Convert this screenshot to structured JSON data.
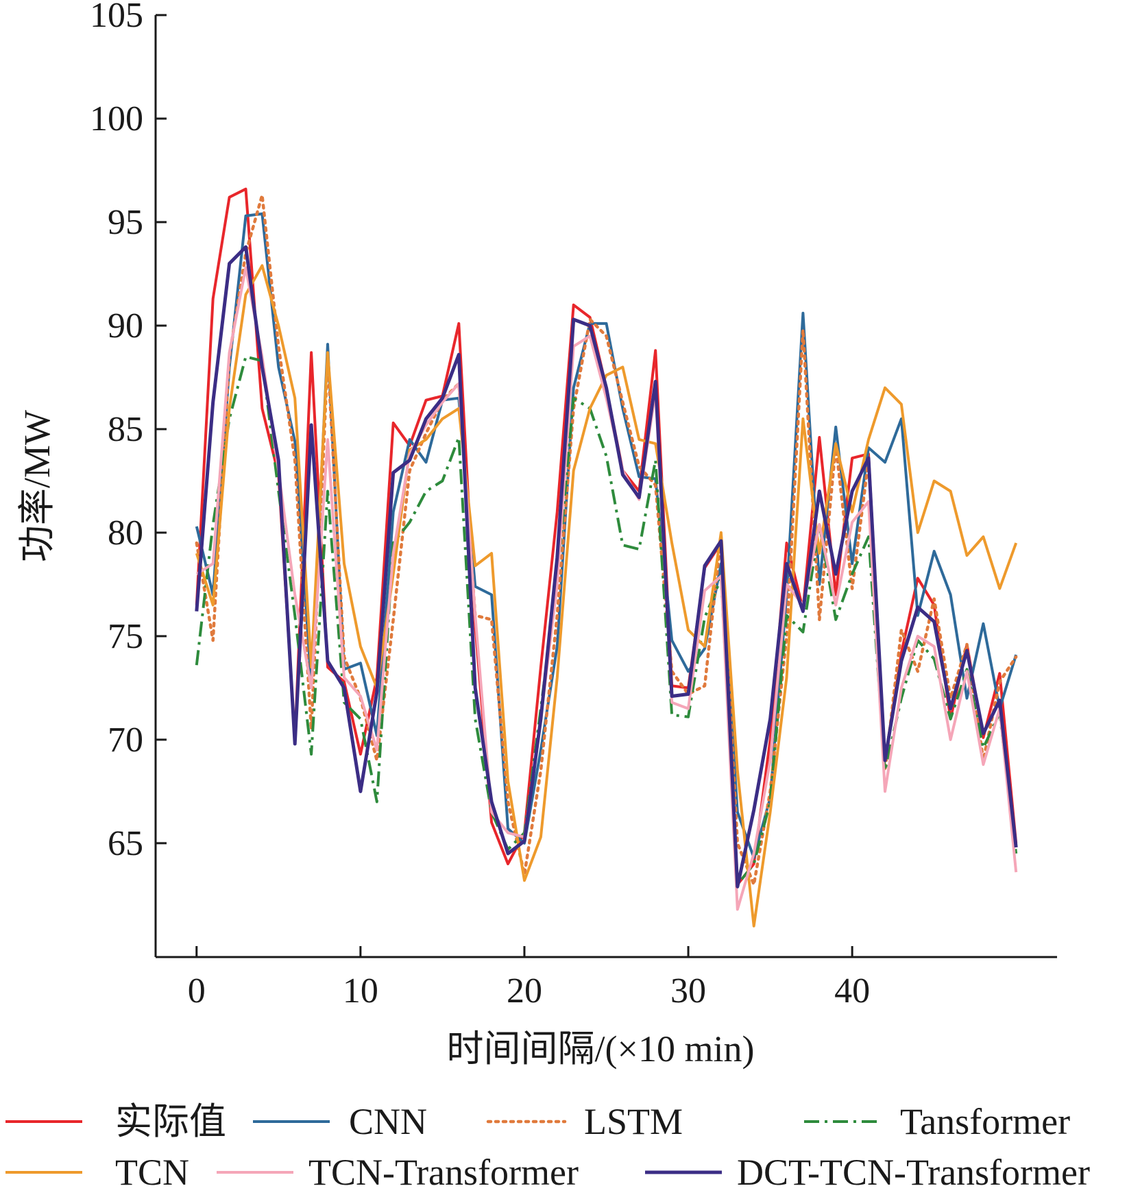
{
  "chart_data": {
    "type": "line",
    "title": "",
    "xlabel": "时间间隔/(×10 min)",
    "ylabel": "功率/MW",
    "xlim": [
      -2.5,
      52.5
    ],
    "ylim": [
      59.5,
      105
    ],
    "xticks": [
      0,
      10,
      20,
      30,
      40
    ],
    "xtick_labels": [
      "0",
      "10",
      "20",
      "30",
      "40"
    ],
    "yticks": [
      65,
      70,
      75,
      80,
      85,
      90,
      95,
      100,
      105
    ],
    "ytick_labels": [
      "65",
      "70",
      "75",
      "80",
      "85",
      "90",
      "95",
      "100",
      "105"
    ],
    "grid": false,
    "legend_position": "bottom",
    "x": [
      0,
      1,
      2,
      3,
      4,
      5,
      6,
      7,
      8,
      9,
      10,
      11,
      12,
      13,
      14,
      15,
      16,
      17,
      18,
      19,
      20,
      21,
      22,
      23,
      24,
      25,
      26,
      27,
      28,
      29,
      30,
      31,
      32,
      33,
      34,
      35,
      36,
      37,
      38,
      39,
      40,
      41,
      42,
      43,
      44,
      45,
      46,
      47,
      48,
      49,
      50
    ],
    "series": [
      {
        "name": "实际值",
        "color": "#e8262b",
        "dash": "solid",
        "width": 4,
        "values": [
          76.5,
          91.3,
          96.2,
          96.6,
          86,
          82.8,
          70,
          88.7,
          73.5,
          72.8,
          69.3,
          73,
          85.3,
          84.2,
          86.4,
          86.6,
          90.1,
          75.5,
          66,
          64,
          65.5,
          73.5,
          81,
          91,
          90.4,
          87,
          83,
          82,
          88.8,
          72.6,
          72.5,
          78.3,
          79.5,
          63,
          64,
          70,
          79.5,
          76.3,
          84.6,
          77,
          83.6,
          83.8,
          69,
          74.2,
          77.8,
          76.5,
          71,
          74.6,
          70.1,
          73.2,
          65
        ]
      },
      {
        "name": "CNN",
        "color": "#2e6a9a",
        "dash": "solid",
        "width": 4,
        "values": [
          80.3,
          77,
          88,
          95.3,
          95.4,
          88,
          84.4,
          72.6,
          89.1,
          73.4,
          73.7,
          70.2,
          81,
          84.5,
          83.4,
          86.4,
          86.5,
          77.4,
          77,
          65.7,
          65,
          69.5,
          74.5,
          87,
          90.1,
          90.1,
          86,
          82.7,
          82.6,
          74.8,
          73.3,
          74.4,
          78.5,
          66.5,
          64.3,
          67.2,
          77,
          90.6,
          77.5,
          85.1,
          78.5,
          84.1,
          83.4,
          85.5,
          76,
          79.1,
          77,
          72,
          75.6,
          71.5,
          74.1
        ]
      },
      {
        "name": "LSTM",
        "color": "#e07a3c",
        "dash": "dotted",
        "width": 4.5,
        "values": [
          79.5,
          74.8,
          88.5,
          93.5,
          96.3,
          89,
          83.5,
          70.5,
          88.5,
          74,
          72,
          69,
          75.8,
          83,
          84.8,
          86.4,
          87.2,
          76,
          75.8,
          67,
          63.5,
          68.5,
          76,
          86,
          90.3,
          89.5,
          86.3,
          83.2,
          82.3,
          73.3,
          72.2,
          72.6,
          79.8,
          65,
          63,
          67.5,
          75,
          89.8,
          75.8,
          84.2,
          77.3,
          83.5,
          68.5,
          75.3,
          73.3,
          76.8,
          72,
          74.6,
          69,
          72.8,
          74
        ]
      },
      {
        "name": "Tansformer",
        "color": "#2e8b3c",
        "dash": "dashdot",
        "width": 4,
        "values": [
          73.6,
          80.4,
          85.5,
          88.5,
          88.3,
          82,
          76,
          69.3,
          82,
          71.8,
          71,
          67,
          79.5,
          80.5,
          82,
          82.5,
          84.6,
          71,
          66.5,
          64.7,
          65.5,
          71.5,
          77.8,
          86.5,
          86,
          83.7,
          79.4,
          79.2,
          83.5,
          71.2,
          71.1,
          75.9,
          77.8,
          63,
          64,
          67,
          76,
          75.2,
          80.4,
          75.8,
          78,
          79.8,
          68.5,
          72,
          74.8,
          73.9,
          71,
          73.4,
          69.6,
          71.3,
          64.5
        ]
      },
      {
        "name": "TCN",
        "color": "#ee9a2c",
        "dash": "solid",
        "width": 4,
        "values": [
          79,
          76.5,
          86,
          91.5,
          92.9,
          90,
          86.5,
          73.5,
          88.7,
          78.5,
          74.5,
          72.5,
          78,
          84,
          84.5,
          85.5,
          86,
          78.4,
          79,
          68,
          63.2,
          65.3,
          73,
          83,
          86,
          87.6,
          88,
          84.5,
          84.3,
          79.5,
          75.3,
          74.5,
          80,
          68.5,
          61,
          66.5,
          73,
          85.5,
          79,
          84.3,
          81,
          84.5,
          87,
          86.2,
          80,
          82.5,
          82,
          78.9,
          79.8,
          77.3,
          79.5
        ]
      },
      {
        "name": "TCN-Transformer",
        "color": "#f5a6b8",
        "dash": "solid",
        "width": 4,
        "values": [
          78,
          78.5,
          88.7,
          92.8,
          88.5,
          83,
          77,
          72.5,
          84.5,
          73,
          72.1,
          69.5,
          79,
          83.8,
          85.2,
          86.3,
          87.2,
          76,
          66.5,
          65.5,
          65.3,
          71,
          77.5,
          89,
          89.5,
          86.5,
          83,
          81.6,
          86.8,
          71.8,
          71.5,
          77.2,
          77.9,
          61.8,
          64.5,
          69,
          77.5,
          76.5,
          80.4,
          76.5,
          80.5,
          81.5,
          67.5,
          72.5,
          75,
          74.5,
          70,
          73.3,
          68.8,
          71.5,
          63.6
        ]
      },
      {
        "name": "DCT-TCN-Transformer",
        "color": "#3b2d85",
        "dash": "solid",
        "width": 5,
        "values": [
          76.2,
          86.3,
          93,
          93.8,
          88,
          83.5,
          69.8,
          85.2,
          73.8,
          72.5,
          67.5,
          72.3,
          82.9,
          83.5,
          85.5,
          86.5,
          88.6,
          72.5,
          67,
          64.5,
          65.1,
          71,
          78.8,
          90.3,
          90,
          87,
          82.8,
          81.7,
          87.3,
          72.1,
          72.2,
          78.4,
          79.6,
          62.9,
          66.6,
          71,
          78.5,
          76.2,
          82,
          78,
          82,
          83.6,
          69,
          73.8,
          76.4,
          75.7,
          71.5,
          74.3,
          70.3,
          71.9,
          64.8
        ]
      }
    ]
  }
}
